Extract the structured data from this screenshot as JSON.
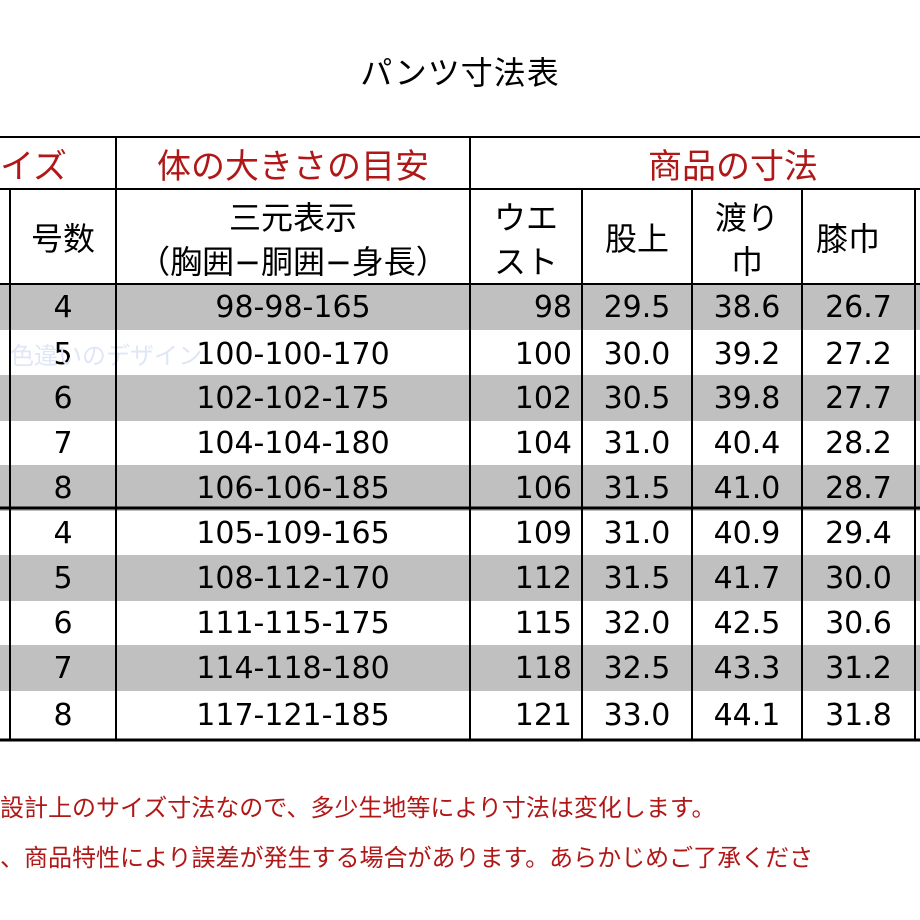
{
  "title": "パンツ寸法表",
  "header": {
    "group_size": "イズ",
    "group_body": "体の大きさの目安",
    "group_product": "商品の寸法",
    "col_number": "号数",
    "col_sanken_line1": "三元表示",
    "col_sanken_line2": "（胸囲−胴囲−身長）",
    "col_waist_line1": "ウエ",
    "col_waist_line2": "スト",
    "col_rise": "股上",
    "col_thigh_line1": "渡り",
    "col_thigh_line2": "巾",
    "col_knee": "膝巾"
  },
  "rows": [
    {
      "number": "4",
      "sanken": "98-98-165",
      "waist": "98",
      "rise": "29.5",
      "thigh": "38.6",
      "knee": "26.7"
    },
    {
      "number": "5",
      "sanken": "100-100-170",
      "waist": "100",
      "rise": "30.0",
      "thigh": "39.2",
      "knee": "27.2"
    },
    {
      "number": "6",
      "sanken": "102-102-175",
      "waist": "102",
      "rise": "30.5",
      "thigh": "39.8",
      "knee": "27.7"
    },
    {
      "number": "7",
      "sanken": "104-104-180",
      "waist": "104",
      "rise": "31.0",
      "thigh": "40.4",
      "knee": "28.2"
    },
    {
      "number": "8",
      "sanken": "106-106-185",
      "waist": "106",
      "rise": "31.5",
      "thigh": "41.0",
      "knee": "28.7"
    },
    {
      "number": "4",
      "sanken": "105-109-165",
      "waist": "109",
      "rise": "31.0",
      "thigh": "40.9",
      "knee": "29.4"
    },
    {
      "number": "5",
      "sanken": "108-112-170",
      "waist": "112",
      "rise": "31.5",
      "thigh": "41.7",
      "knee": "30.0"
    },
    {
      "number": "6",
      "sanken": "111-115-175",
      "waist": "115",
      "rise": "32.0",
      "thigh": "42.5",
      "knee": "30.6"
    },
    {
      "number": "7",
      "sanken": "114-118-180",
      "waist": "118",
      "rise": "32.5",
      "thigh": "43.3",
      "knee": "31.2"
    },
    {
      "number": "8",
      "sanken": "117-121-185",
      "waist": "121",
      "rise": "33.0",
      "thigh": "44.1",
      "knee": "31.8"
    }
  ],
  "notes": [
    "設計上のサイズ寸法なので、多少生地等により寸法は変化します。",
    "、商品特性により誤差が発生する場合があります。あらかじめご了承くださ"
  ],
  "watermark": "色違いのデザイン",
  "colors": {
    "shaded_row": "#c0c0c0",
    "header_red": "#b01818",
    "note_red": "#b01818",
    "grid": "#000000"
  }
}
